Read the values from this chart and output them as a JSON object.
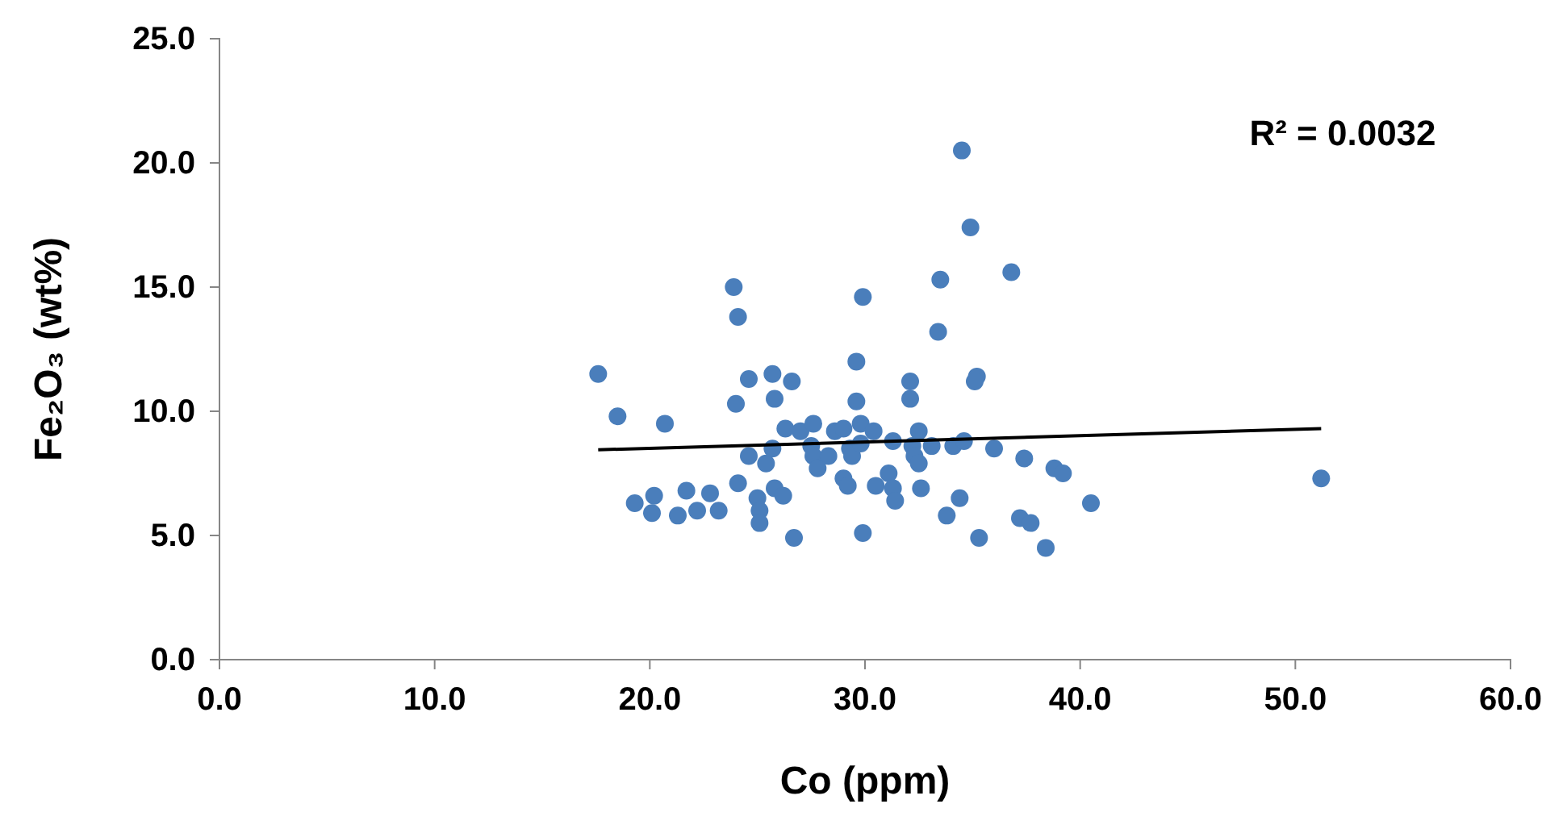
{
  "chart_data": {
    "type": "scatter",
    "xlabel": "Co (ppm)",
    "ylabel": "Fe₂O₃ (wt%)",
    "xlim": [
      0,
      60
    ],
    "xticks": [
      {
        "value": 0,
        "label": "0.0"
      },
      {
        "value": 10,
        "label": "10.0"
      },
      {
        "value": 20,
        "label": "20.0"
      },
      {
        "value": 30,
        "label": "30.0"
      },
      {
        "value": 40,
        "label": "40.0"
      },
      {
        "value": 50,
        "label": "50.0"
      },
      {
        "value": 60,
        "label": "60.0"
      }
    ],
    "ylim": [
      0,
      25
    ],
    "yticks": [
      {
        "value": 0,
        "label": "0.0"
      },
      {
        "value": 5,
        "label": "5.0"
      },
      {
        "value": 10,
        "label": "10.0"
      },
      {
        "value": 15,
        "label": "15.0"
      },
      {
        "value": 20,
        "label": "20.0"
      },
      {
        "value": 25,
        "label": "25.0"
      }
    ],
    "grid": false,
    "annotations": [
      "R² = 0.0032"
    ],
    "series": [
      {
        "marker": "circle",
        "color": "#4a7ebb",
        "x": [
          34.5,
          34.9,
          36.8,
          33.5,
          23.9,
          29.9,
          24.1,
          33.4,
          29.6,
          17.6,
          24.6,
          25.7,
          26.6,
          35.2,
          35.1,
          32.1,
          32.1,
          24.0,
          25.8,
          29.6,
          18.5,
          20.7,
          26.3,
          27.0,
          27.6,
          28.6,
          29.0,
          29.8,
          30.4,
          31.3,
          32.5,
          33.1,
          34.1,
          34.6,
          36.0,
          37.4,
          38.8,
          39.2,
          24.6,
          25.7,
          25.4,
          27.5,
          27.6,
          28.3,
          27.8,
          29.3,
          29.4,
          29.8,
          32.2,
          32.3,
          32.5,
          24.1,
          29.0,
          29.2,
          30.5,
          31.1,
          31.3,
          31.4,
          32.6,
          34.4,
          33.8,
          25.8,
          26.2,
          19.3,
          20.2,
          20.1,
          21.7,
          21.3,
          22.2,
          22.8,
          23.2,
          25.0,
          25.1,
          25.1,
          26.7,
          29.9,
          35.3,
          37.2,
          37.7,
          38.4,
          40.5,
          51.2
        ],
        "values": [
          20.5,
          17.4,
          15.6,
          15.3,
          15.0,
          14.6,
          13.8,
          13.2,
          12.0,
          11.5,
          11.3,
          11.5,
          11.2,
          11.4,
          11.2,
          11.2,
          10.5,
          10.3,
          10.5,
          10.4,
          9.8,
          9.5,
          9.3,
          9.2,
          9.5,
          9.2,
          9.3,
          9.5,
          9.2,
          8.8,
          9.2,
          8.6,
          8.6,
          8.8,
          8.5,
          8.1,
          7.7,
          7.5,
          8.2,
          8.5,
          7.9,
          8.6,
          8.2,
          8.2,
          7.7,
          8.5,
          8.2,
          8.7,
          8.6,
          8.2,
          7.9,
          7.1,
          7.3,
          7.0,
          7.0,
          7.5,
          6.9,
          6.4,
          6.9,
          6.5,
          5.8,
          6.9,
          6.6,
          6.3,
          6.6,
          5.9,
          6.8,
          5.8,
          6.0,
          6.7,
          6.0,
          6.5,
          6.0,
          5.5,
          4.9,
          5.1,
          4.9,
          5.7,
          5.5,
          4.5,
          6.3,
          7.3
        ]
      },
      {
        "type": "line",
        "color": "#000000",
        "x": [
          17.6,
          51.2
        ],
        "values": [
          8.45,
          9.3
        ]
      }
    ]
  }
}
